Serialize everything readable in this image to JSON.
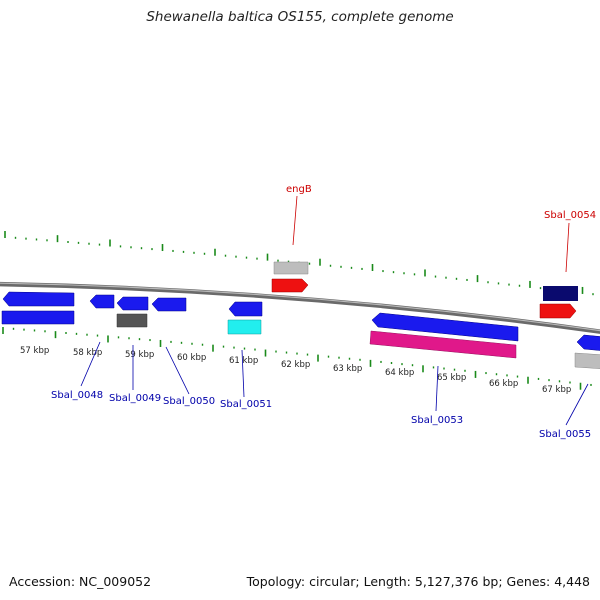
{
  "title": "Shewanella baltica OS155, complete genome",
  "footer": {
    "accession": "Accession: NC_009052",
    "summary": "Topology: circular; Length: 5,127,376 bp; Genes: 4,448"
  },
  "axis_labels": [
    "57 kbp",
    "58 kbp",
    "59 kbp",
    "60 kbp",
    "61 kbp",
    "62 kbp",
    "63 kbp",
    "64 kbp",
    "65 kbp",
    "66 kbp",
    "67 kbp"
  ],
  "gene_labels": {
    "engB": "engB",
    "sbal_0054": "Sbal_0054",
    "sbal_0048": "Sbal_0048",
    "sbal_0049": "Sbal_0049",
    "sbal_0050": "Sbal_0050",
    "sbal_0051": "Sbal_0051",
    "sbal_0053": "Sbal_0053",
    "sbal_0055": "Sbal_0055"
  },
  "colors": {
    "forward_label": "#cc0000",
    "reverse_label": "#0000aa",
    "blue": "#1a1aee",
    "red": "#ee1111",
    "navy": "#0a0a6e",
    "cyan": "#22eeee",
    "magenta": "#e0188a",
    "gray": "#999999",
    "dark_gray": "#555555",
    "tick_green": "#1a8a1a"
  }
}
